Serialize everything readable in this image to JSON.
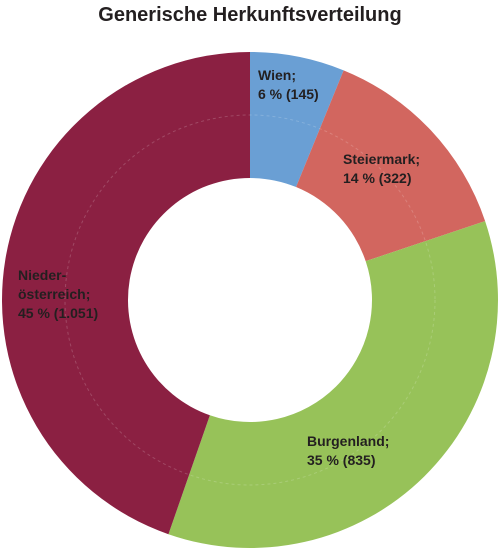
{
  "chart_data": {
    "type": "pie",
    "donut": true,
    "title": "Generische Herkunftsverteilung",
    "slices": [
      {
        "name": "Wien",
        "percent": 6,
        "count": 145,
        "label_lines": [
          "Wien;",
          "6 % (145)"
        ],
        "color": "#6a9fd4"
      },
      {
        "name": "Steiermark",
        "percent": 14,
        "count": 322,
        "label_lines": [
          "Steiermark;",
          "14 % (322)"
        ],
        "color": "#d2665f"
      },
      {
        "name": "Burgenland",
        "percent": 35,
        "count": 835,
        "label_lines": [
          "Burgenland;",
          "35 % (835)"
        ],
        "color": "#97c259"
      },
      {
        "name": "Niederösterreich",
        "percent": 45,
        "count": 1051,
        "label_lines": [
          "Nieder-",
          "österreich;",
          "45 %  (1.051)"
        ],
        "color": "#8b2042"
      }
    ]
  }
}
